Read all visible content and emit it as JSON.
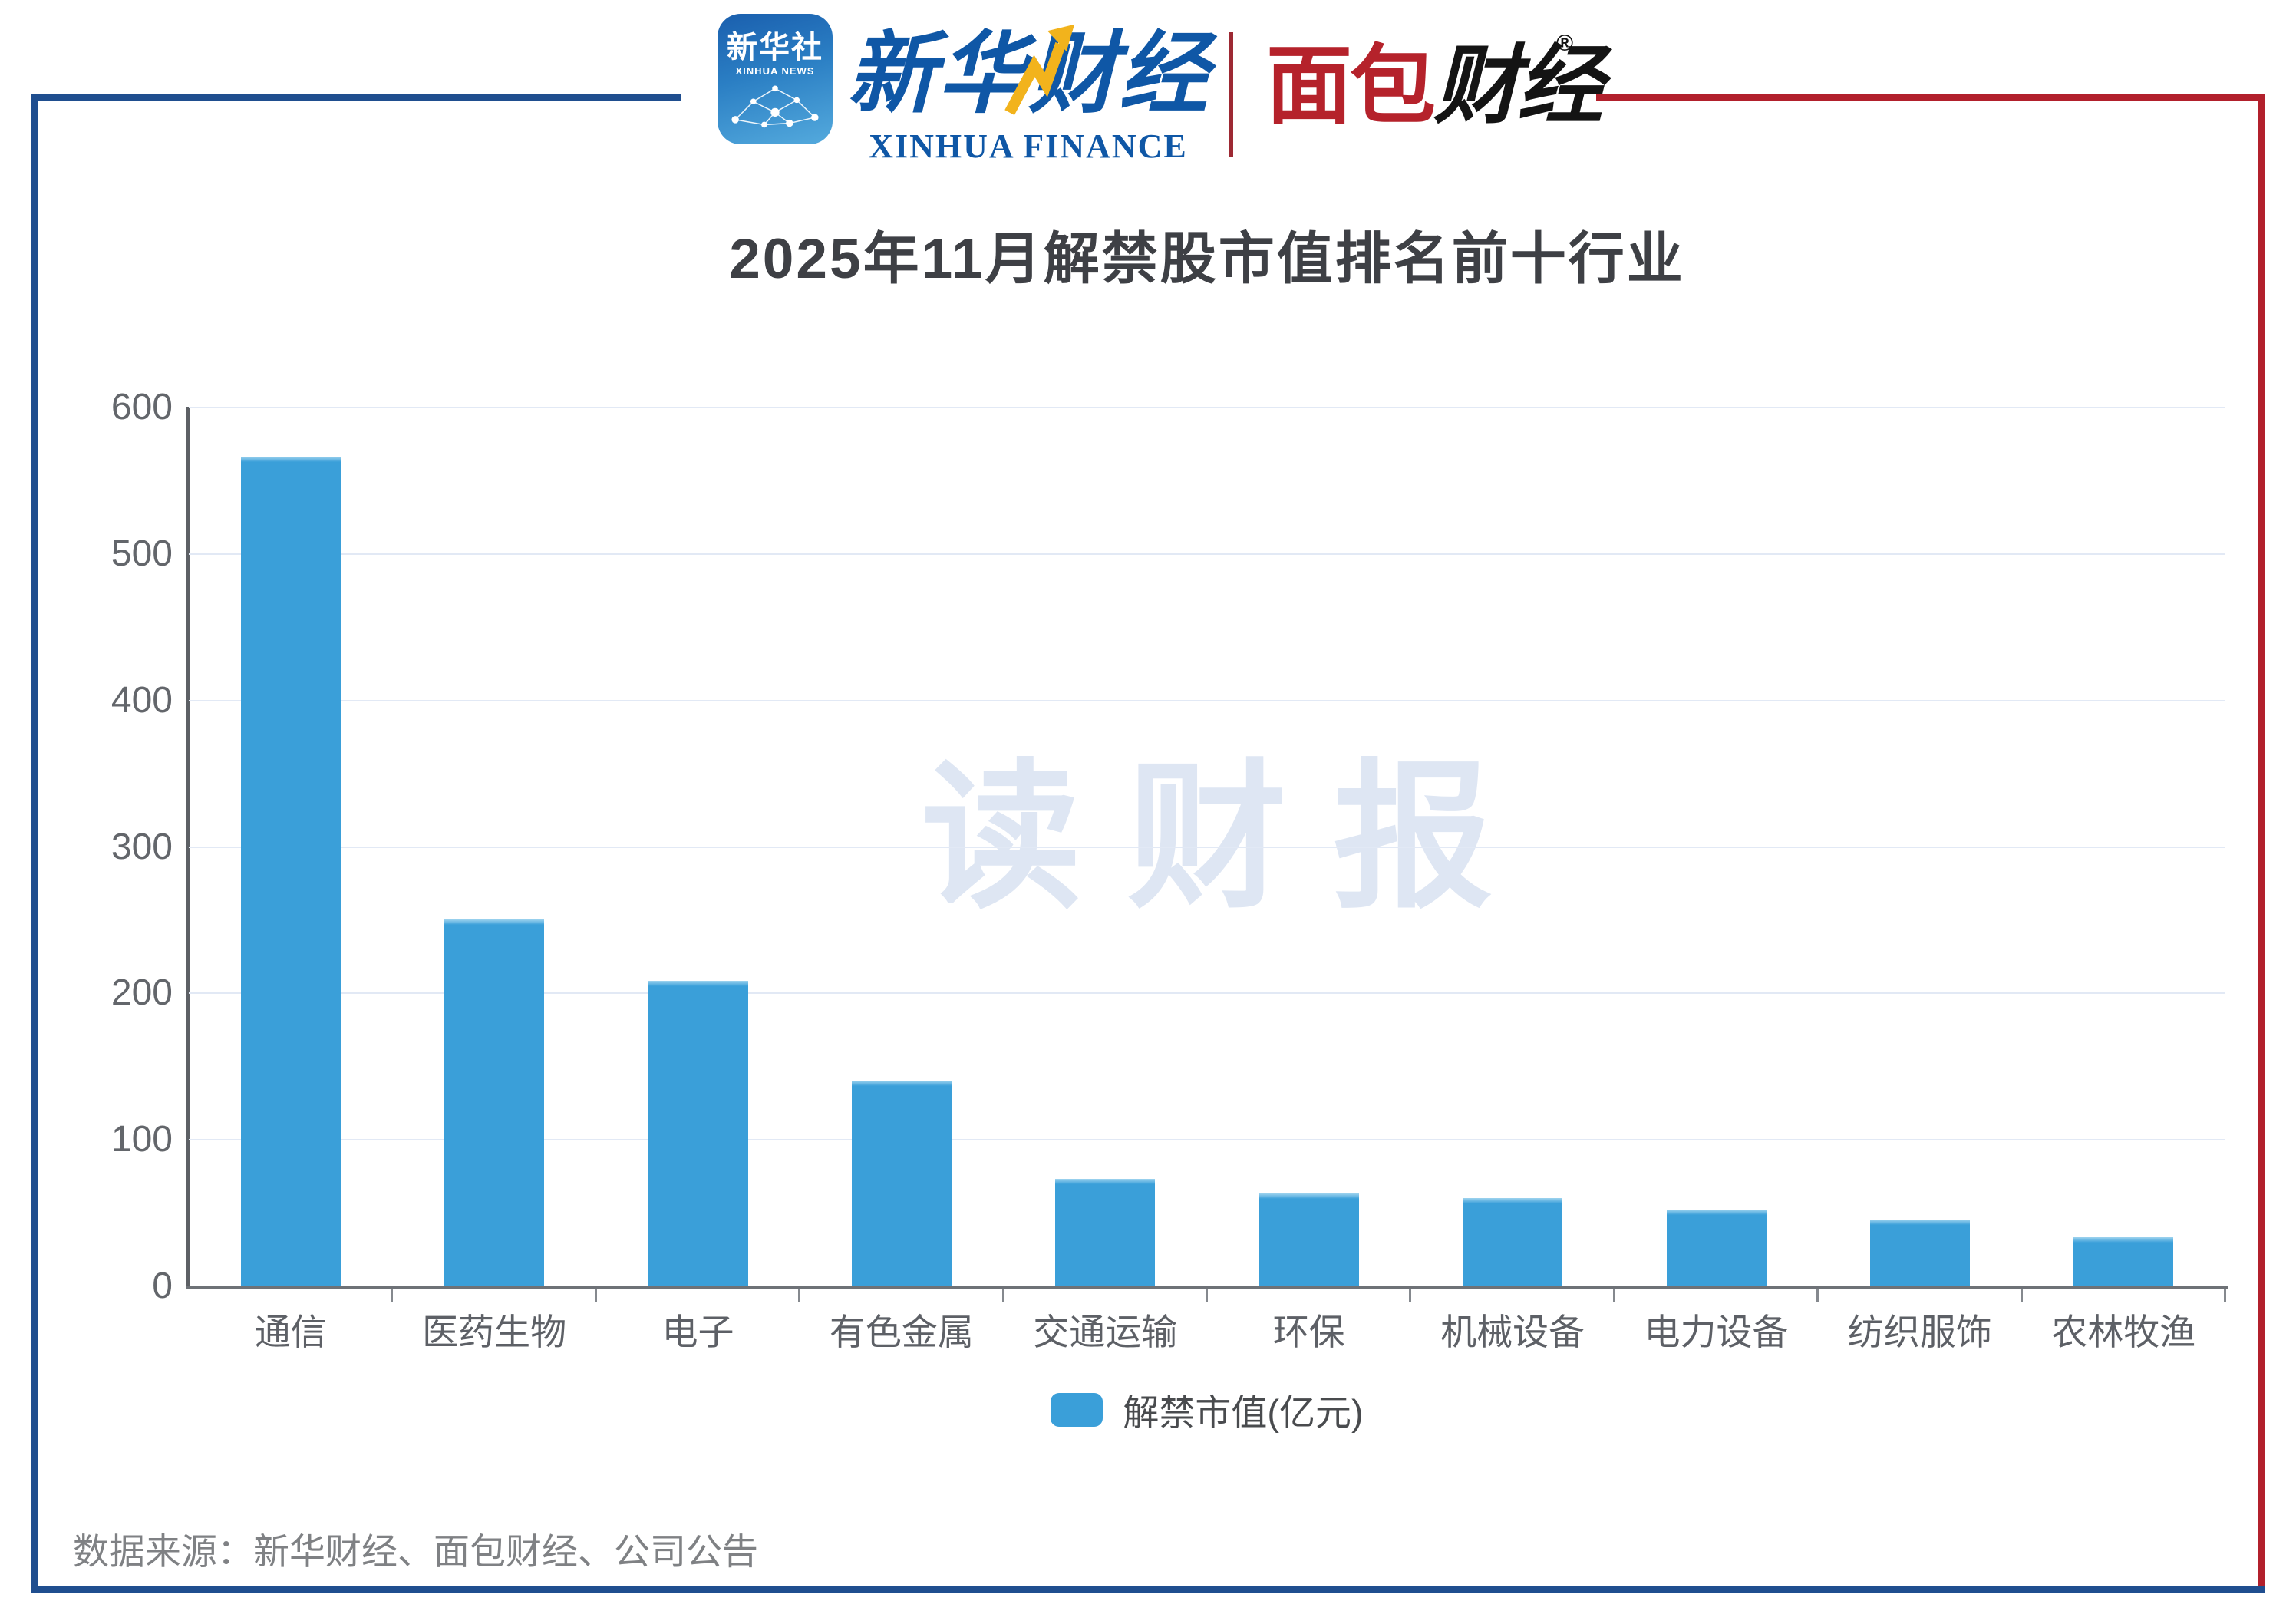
{
  "header": {
    "xinhua_news_icon": {
      "cn": "新华社",
      "en": "XINHUA NEWS"
    },
    "xinhua_finance": {
      "cn": "新华财经",
      "en": "XINHUA FINANCE"
    },
    "mianbao": {
      "part1": "面包",
      "part2": "财经",
      "reg": "®"
    }
  },
  "chart_data": {
    "type": "bar",
    "title": "2025年11月解禁股市值排名前十行业",
    "categories": [
      "通信",
      "医药生物",
      "电子",
      "有色金属",
      "交通运输",
      "环保",
      "机械设备",
      "电力设备",
      "纺织服饰",
      "农林牧渔"
    ],
    "values": [
      566,
      250,
      208,
      140,
      73,
      63,
      60,
      52,
      45,
      33
    ],
    "series_name": "解禁市值(亿元)",
    "xlabel": "",
    "ylabel": "",
    "ylim": [
      0,
      600
    ],
    "yticks": [
      0,
      100,
      200,
      300,
      400,
      500,
      600
    ],
    "grid": true,
    "legend_position": "bottom",
    "bar_color": "#3a9fd9",
    "watermark": "读财报"
  },
  "footer": {
    "source": "数据来源：新华财经、面包财经、公司公告"
  },
  "colors": {
    "frame_blue": "#1f4e8f",
    "frame_red": "#b2202c",
    "bar": "#3a9fd9",
    "gridline": "#e2e9f5",
    "watermark": "#dee6f3"
  }
}
